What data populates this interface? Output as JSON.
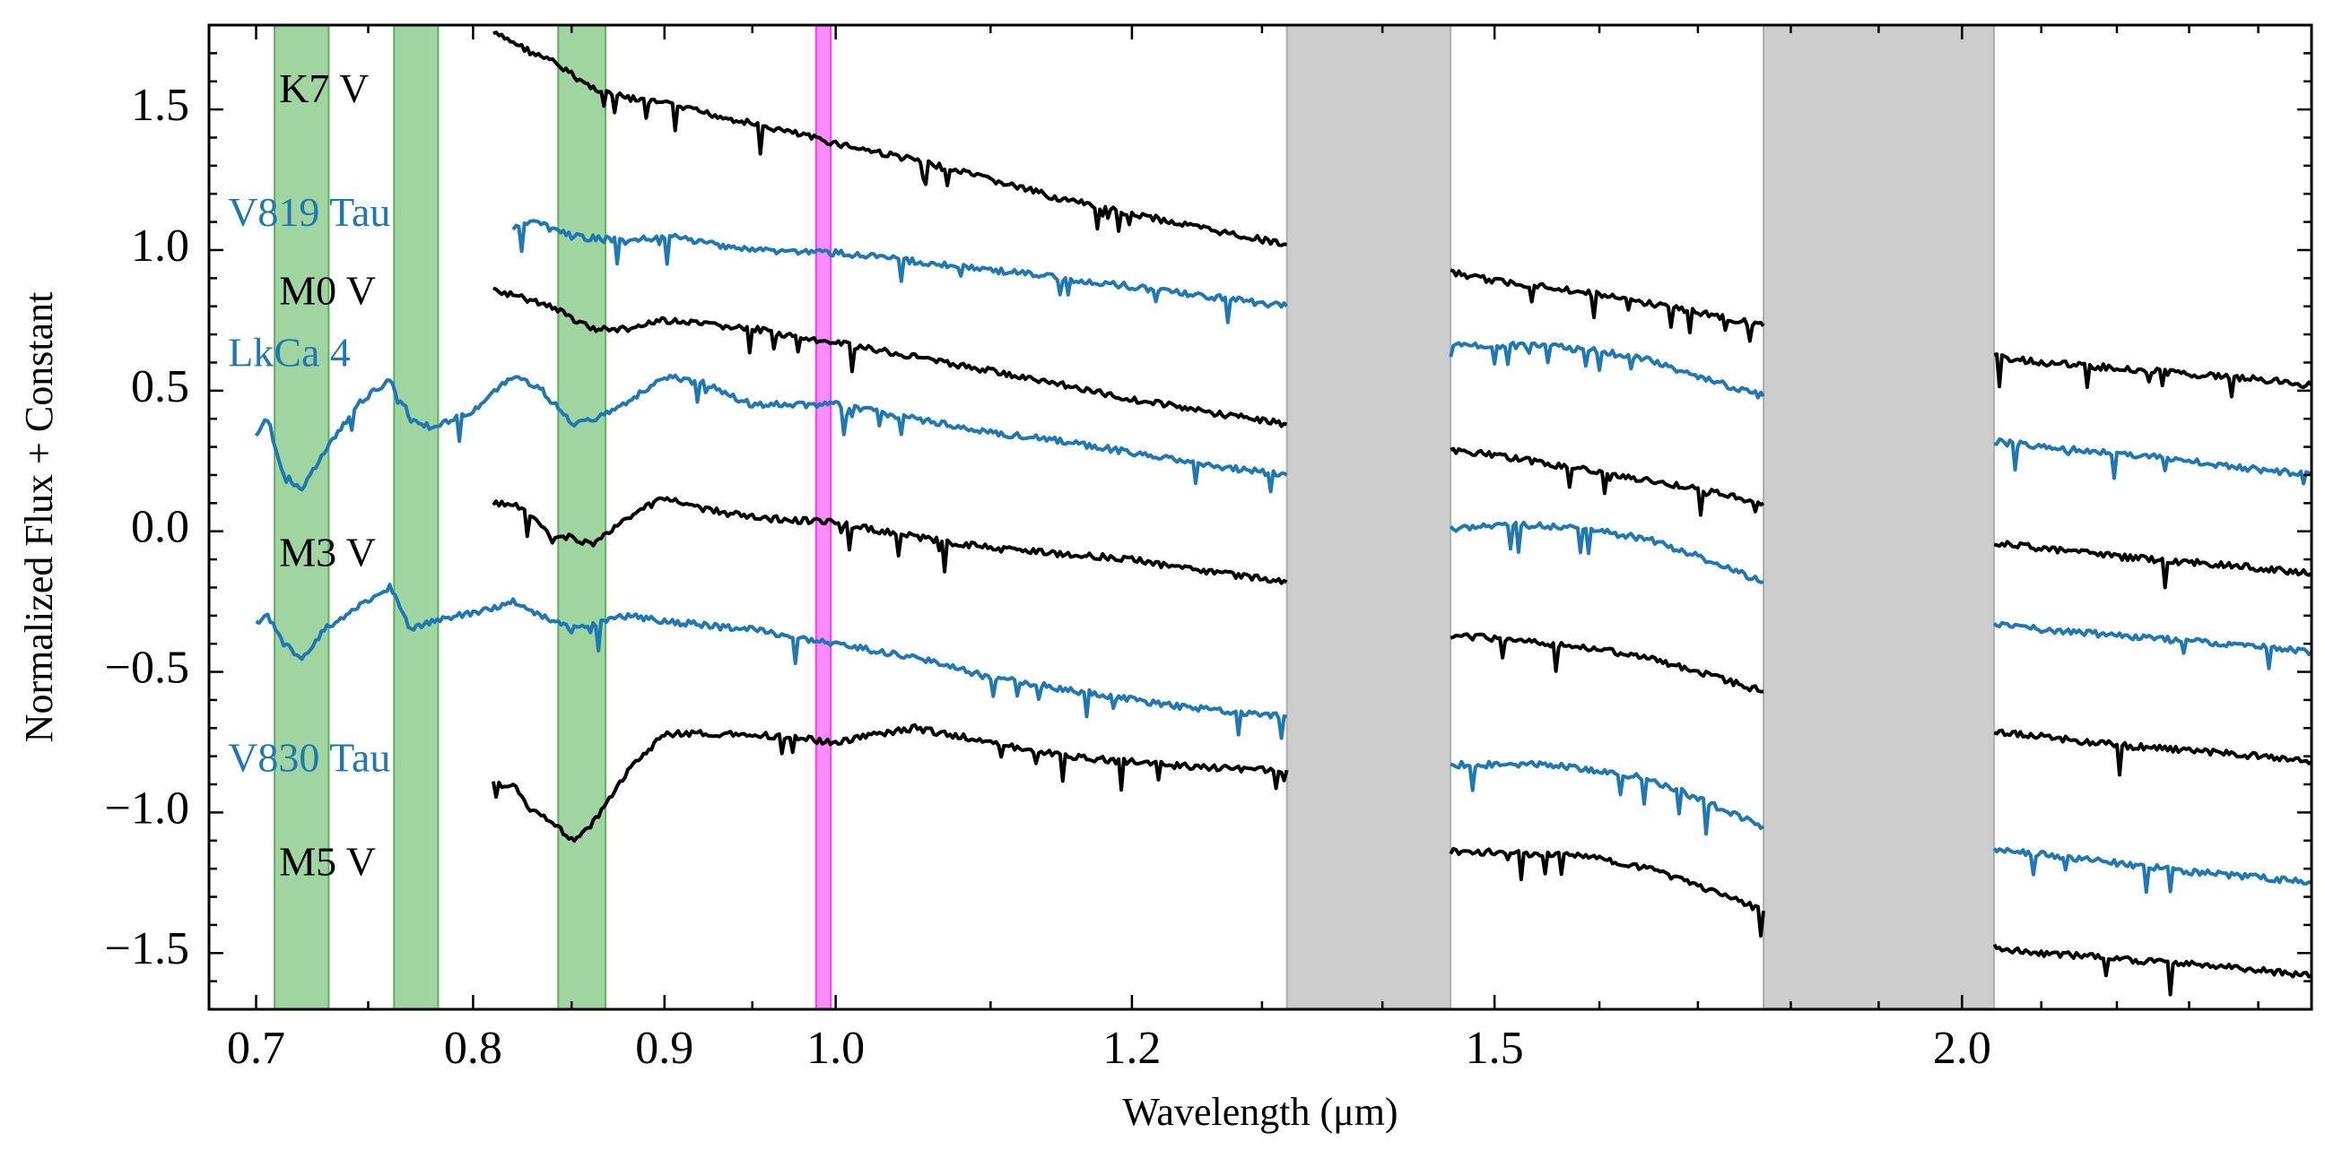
{
  "chart_data": {
    "type": "line",
    "title": "",
    "xlabel": "Wavelength (μm)",
    "ylabel": "Normalized Flux + Constant",
    "xscale": "log",
    "xlim": [
      0.68,
      2.48
    ],
    "ylim": [
      -1.7,
      1.8
    ],
    "x_ticks": [
      {
        "value": 0.7,
        "label": "0.7"
      },
      {
        "value": 0.8,
        "label": "0.8"
      },
      {
        "value": 0.9,
        "label": "0.9"
      },
      {
        "value": 1.0,
        "label": "1.0"
      },
      {
        "value": 1.2,
        "label": "1.2"
      },
      {
        "value": 1.5,
        "label": "1.5"
      },
      {
        "value": 2.0,
        "label": "2.0"
      }
    ],
    "y_ticks": [
      {
        "value": 1.5,
        "label": "1.5"
      },
      {
        "value": 1.0,
        "label": "1.0"
      },
      {
        "value": 0.5,
        "label": "0.5"
      },
      {
        "value": 0.0,
        "label": "0.0"
      },
      {
        "value": -0.5,
        "label": "−0.5"
      },
      {
        "value": -1.0,
        "label": "−1.0"
      },
      {
        "value": -1.5,
        "label": "−1.5"
      }
    ],
    "x_minor_ticks": [
      0.75,
      0.85,
      0.95,
      1.1,
      1.3,
      1.4,
      1.6,
      1.7,
      1.8,
      1.9,
      2.1,
      2.2,
      2.3,
      2.4
    ],
    "y_minor_ticks": [
      1.7,
      1.6,
      1.4,
      1.3,
      1.2,
      1.1,
      0.9,
      0.8,
      0.7,
      0.6,
      0.4,
      0.3,
      0.2,
      0.1,
      -0.1,
      -0.2,
      -0.3,
      -0.4,
      -0.6,
      -0.7,
      -0.8,
      -0.9,
      -1.1,
      -1.2,
      -1.3,
      -1.4,
      -1.6
    ],
    "bands": [
      {
        "name": "green-band-1",
        "from": 0.708,
        "to": 0.732,
        "color": "#2ca02c"
      },
      {
        "name": "green-band-2",
        "from": 0.762,
        "to": 0.783,
        "color": "#2ca02c"
      },
      {
        "name": "green-band-3",
        "from": 0.843,
        "to": 0.868,
        "color": "#2ca02c"
      },
      {
        "name": "magenta-band",
        "from": 0.988,
        "to": 0.997,
        "color": "#ff00ff"
      },
      {
        "name": "gray-band-1",
        "from": 1.32,
        "to": 1.46,
        "color": "#999999"
      },
      {
        "name": "gray-band-2",
        "from": 1.77,
        "to": 2.04,
        "color": "#999999"
      }
    ],
    "series": [
      {
        "name": "K7 V",
        "color": "#000000",
        "segments": [
          {
            "x": [
              0.81,
              0.82,
              0.83,
              0.84,
              0.86,
              0.88,
              0.9,
              0.95,
              1.0,
              1.05,
              1.1,
              1.15,
              1.2,
              1.25,
              1.32
            ],
            "y": [
              1.77,
              1.74,
              1.7,
              1.67,
              1.58,
              1.54,
              1.52,
              1.45,
              1.38,
              1.32,
              1.25,
              1.18,
              1.13,
              1.08,
              1.02
            ]
          },
          {
            "x": [
              1.46,
              1.5,
              1.55,
              1.6,
              1.65,
              1.7,
              1.77
            ],
            "y": [
              0.92,
              0.89,
              0.87,
              0.84,
              0.81,
              0.78,
              0.73
            ]
          },
          {
            "x": [
              2.04,
              2.1,
              2.2,
              2.3,
              2.4,
              2.48
            ],
            "y": [
              0.62,
              0.6,
              0.58,
              0.56,
              0.54,
              0.52
            ]
          }
        ]
      },
      {
        "name": "V819 Tau",
        "color": "#1f77b4",
        "segments": [
          {
            "x": [
              0.82,
              0.83,
              0.85,
              0.88,
              0.9,
              0.95,
              1.0,
              1.05,
              1.1,
              1.15,
              1.2,
              1.25,
              1.32
            ],
            "y": [
              1.08,
              1.1,
              1.05,
              1.03,
              1.05,
              1.0,
              0.99,
              0.96,
              0.93,
              0.9,
              0.87,
              0.84,
              0.8
            ]
          },
          {
            "x": [
              1.46,
              1.5,
              1.55,
              1.6,
              1.65,
              1.7,
              1.77
            ],
            "y": [
              0.66,
              0.66,
              0.66,
              0.64,
              0.61,
              0.55,
              0.48
            ]
          },
          {
            "x": [
              2.04,
              2.1,
              2.2,
              2.3,
              2.4,
              2.48
            ],
            "y": [
              0.32,
              0.3,
              0.28,
              0.25,
              0.22,
              0.2
            ]
          }
        ]
      },
      {
        "name": "M0 V",
        "color": "#000000",
        "segments": [
          {
            "x": [
              0.81,
              0.82,
              0.83,
              0.84,
              0.86,
              0.88,
              0.9,
              0.95,
              1.0,
              1.05,
              1.1,
              1.15,
              1.2,
              1.25,
              1.32
            ],
            "y": [
              0.86,
              0.84,
              0.82,
              0.8,
              0.72,
              0.72,
              0.75,
              0.72,
              0.67,
              0.62,
              0.57,
              0.52,
              0.47,
              0.43,
              0.38
            ]
          },
          {
            "x": [
              1.46,
              1.5,
              1.55,
              1.6,
              1.65,
              1.7,
              1.77
            ],
            "y": [
              0.29,
              0.27,
              0.24,
              0.21,
              0.18,
              0.15,
              0.1
            ]
          },
          {
            "x": [
              2.04,
              2.1,
              2.2,
              2.3,
              2.4,
              2.48
            ],
            "y": [
              -0.04,
              -0.06,
              -0.09,
              -0.11,
              -0.13,
              -0.15
            ]
          }
        ]
      },
      {
        "name": "LkCa 4",
        "color": "#1f77b4",
        "segments": [
          {
            "x": [
              0.7,
              0.705,
              0.712,
              0.72,
              0.73,
              0.745,
              0.76,
              0.77,
              0.78,
              0.8,
              0.82,
              0.835,
              0.85,
              0.87,
              0.9,
              0.92,
              0.95,
              1.0,
              1.05,
              1.1,
              1.15,
              1.2,
              1.25,
              1.32
            ],
            "y": [
              0.35,
              0.4,
              0.2,
              0.15,
              0.28,
              0.45,
              0.54,
              0.4,
              0.37,
              0.43,
              0.55,
              0.5,
              0.38,
              0.42,
              0.55,
              0.53,
              0.45,
              0.45,
              0.4,
              0.35,
              0.32,
              0.28,
              0.24,
              0.2
            ]
          },
          {
            "x": [
              1.46,
              1.5,
              1.55,
              1.6,
              1.65,
              1.7,
              1.77
            ],
            "y": [
              0.01,
              0.02,
              0.02,
              0.0,
              -0.03,
              -0.09,
              -0.18
            ]
          },
          {
            "x": [
              2.04,
              2.1,
              2.2,
              2.3,
              2.4,
              2.48
            ],
            "y": [
              -0.33,
              -0.35,
              -0.37,
              -0.39,
              -0.41,
              -0.43
            ]
          }
        ]
      },
      {
        "name": "M3 V",
        "color": "#000000",
        "segments": [
          {
            "x": [
              0.81,
              0.82,
              0.83,
              0.84,
              0.85,
              0.86,
              0.88,
              0.9,
              0.92,
              0.95,
              1.0,
              1.05,
              1.1,
              1.15,
              1.2,
              1.25,
              1.32
            ],
            "y": [
              0.1,
              0.1,
              0.05,
              -0.03,
              -0.02,
              -0.05,
              0.05,
              0.12,
              0.08,
              0.05,
              0.03,
              -0.02,
              -0.06,
              -0.08,
              -0.1,
              -0.14,
              -0.18
            ]
          },
          {
            "x": [
              1.46,
              1.5,
              1.55,
              1.6,
              1.65,
              1.7,
              1.77
            ],
            "y": [
              -0.37,
              -0.38,
              -0.4,
              -0.42,
              -0.45,
              -0.5,
              -0.57
            ]
          },
          {
            "x": [
              2.04,
              2.1,
              2.2,
              2.3,
              2.4,
              2.48
            ],
            "y": [
              -0.71,
              -0.73,
              -0.76,
              -0.78,
              -0.8,
              -0.82
            ]
          }
        ]
      },
      {
        "name": "V830 Tau",
        "color": "#1f77b4",
        "segments": [
          {
            "x": [
              0.7,
              0.705,
              0.712,
              0.72,
              0.73,
              0.745,
              0.76,
              0.77,
              0.78,
              0.8,
              0.82,
              0.85,
              0.88,
              0.9,
              0.95,
              1.0,
              1.05,
              1.1,
              1.15,
              1.2,
              1.25,
              1.32
            ],
            "y": [
              -0.33,
              -0.3,
              -0.4,
              -0.45,
              -0.35,
              -0.27,
              -0.2,
              -0.35,
              -0.32,
              -0.29,
              -0.25,
              -0.35,
              -0.3,
              -0.32,
              -0.35,
              -0.4,
              -0.45,
              -0.52,
              -0.56,
              -0.6,
              -0.63,
              -0.66
            ]
          },
          {
            "x": [
              1.46,
              1.5,
              1.55,
              1.6,
              1.65,
              1.7,
              1.77
            ],
            "y": [
              -0.83,
              -0.83,
              -0.83,
              -0.85,
              -0.88,
              -0.95,
              -1.05
            ]
          },
          {
            "x": [
              2.04,
              2.1,
              2.2,
              2.3,
              2.4,
              2.48
            ],
            "y": [
              -1.13,
              -1.15,
              -1.18,
              -1.21,
              -1.23,
              -1.25
            ]
          }
        ]
      },
      {
        "name": "M5 V",
        "color": "#000000",
        "segments": [
          {
            "x": [
              0.81,
              0.82,
              0.83,
              0.84,
              0.85,
              0.86,
              0.87,
              0.88,
              0.9,
              0.92,
              0.95,
              1.0,
              1.05,
              1.1,
              1.15,
              1.2,
              1.25,
              1.32
            ],
            "y": [
              -0.9,
              -0.9,
              -1.0,
              -1.03,
              -1.1,
              -1.05,
              -0.95,
              -0.85,
              -0.72,
              -0.72,
              -0.72,
              -0.75,
              -0.7,
              -0.75,
              -0.8,
              -0.82,
              -0.84,
              -0.85
            ]
          },
          {
            "x": [
              1.46,
              1.5,
              1.55,
              1.6,
              1.65,
              1.7,
              1.77
            ],
            "y": [
              -1.14,
              -1.14,
              -1.15,
              -1.16,
              -1.2,
              -1.26,
              -1.35
            ]
          },
          {
            "x": [
              2.04,
              2.1,
              2.2,
              2.3,
              2.4,
              2.48
            ],
            "y": [
              -1.48,
              -1.5,
              -1.52,
              -1.54,
              -1.56,
              -1.58
            ]
          }
        ]
      }
    ],
    "labels": [
      {
        "name": "label-k7v",
        "text": "K7 V",
        "x": 0.71,
        "y": 1.56,
        "color": "#000000"
      },
      {
        "name": "label-v819-tau",
        "text": "V819 Tau",
        "x": 0.688,
        "y": 1.12,
        "color": "#1f77b4"
      },
      {
        "name": "label-m0v",
        "text": "M0 V",
        "x": 0.71,
        "y": 0.84,
        "color": "#000000"
      },
      {
        "name": "label-lkca4",
        "text": "LkCa 4",
        "x": 0.688,
        "y": 0.62,
        "color": "#1f77b4"
      },
      {
        "name": "label-m3v",
        "text": "M3 V",
        "x": 0.71,
        "y": -0.09,
        "color": "#000000"
      },
      {
        "name": "label-v830-tau",
        "text": "V830 Tau",
        "x": 0.688,
        "y": -0.82,
        "color": "#1f77b4"
      },
      {
        "name": "label-m5v",
        "text": "M5 V",
        "x": 0.71,
        "y": -1.19,
        "color": "#000000"
      }
    ]
  }
}
